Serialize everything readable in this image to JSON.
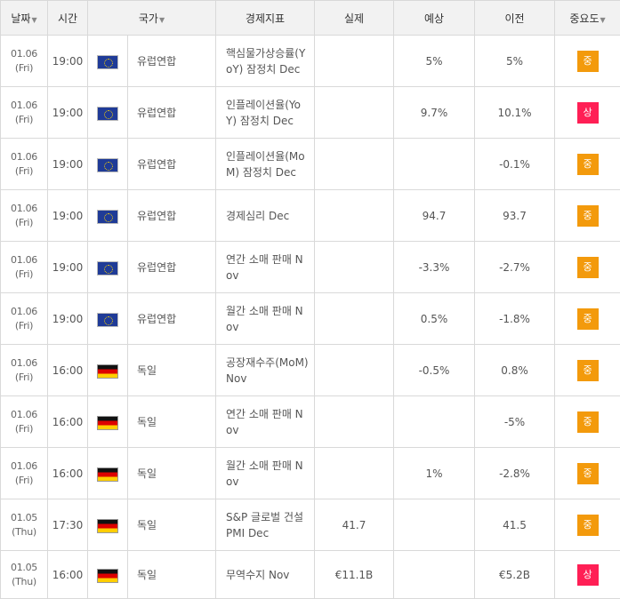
{
  "header": {
    "date": "날짜",
    "time": "시간",
    "country": "국가",
    "indicator": "경제지표",
    "actual": "실제",
    "forecast": "예상",
    "previous": "이전",
    "importance": "중요도",
    "sort_arrow": "▼"
  },
  "flags": {
    "eu": {
      "colors": [
        "#1f3b97",
        "#ffd700"
      ]
    },
    "de": {
      "colors": [
        "#111111",
        "#dd0000",
        "#ffce00"
      ]
    }
  },
  "importance_colors": {
    "mid": "#f39a0c",
    "high": "#ff1f55"
  },
  "rows": [
    {
      "date": "01.06",
      "day": "(Fri)",
      "time": "19:00",
      "flag": "eu",
      "country": "유럽연합",
      "indicator": "핵심물가상승률(YoY) 잠정치 Dec",
      "actual": "",
      "forecast": "5%",
      "previous": "5%",
      "importance": "중",
      "level": "mid"
    },
    {
      "date": "01.06",
      "day": "(Fri)",
      "time": "19:00",
      "flag": "eu",
      "country": "유럽연합",
      "indicator": "인플레이션율(YoY) 잠정치 Dec",
      "actual": "",
      "forecast": "9.7%",
      "previous": "10.1%",
      "importance": "상",
      "level": "high"
    },
    {
      "date": "01.06",
      "day": "(Fri)",
      "time": "19:00",
      "flag": "eu",
      "country": "유럽연합",
      "indicator": "인플레이션율(MoM) 잠정치 Dec",
      "actual": "",
      "forecast": "",
      "previous": "-0.1%",
      "importance": "중",
      "level": "mid"
    },
    {
      "date": "01.06",
      "day": "(Fri)",
      "time": "19:00",
      "flag": "eu",
      "country": "유럽연합",
      "indicator": "경제심리 Dec",
      "actual": "",
      "forecast": "94.7",
      "previous": "93.7",
      "importance": "중",
      "level": "mid"
    },
    {
      "date": "01.06",
      "day": "(Fri)",
      "time": "19:00",
      "flag": "eu",
      "country": "유럽연합",
      "indicator": "연간 소매 판매 Nov",
      "actual": "",
      "forecast": "-3.3%",
      "previous": "-2.7%",
      "importance": "중",
      "level": "mid"
    },
    {
      "date": "01.06",
      "day": "(Fri)",
      "time": "19:00",
      "flag": "eu",
      "country": "유럽연합",
      "indicator": "월간 소매 판매 Nov",
      "actual": "",
      "forecast": "0.5%",
      "previous": "-1.8%",
      "importance": "중",
      "level": "mid"
    },
    {
      "date": "01.06",
      "day": "(Fri)",
      "time": "16:00",
      "flag": "de",
      "country": "독일",
      "indicator": "공장재수주(MoM) Nov",
      "actual": "",
      "forecast": "-0.5%",
      "previous": "0.8%",
      "importance": "중",
      "level": "mid"
    },
    {
      "date": "01.06",
      "day": "(Fri)",
      "time": "16:00",
      "flag": "de",
      "country": "독일",
      "indicator": "연간 소매 판매 Nov",
      "actual": "",
      "forecast": "",
      "previous": "-5%",
      "importance": "중",
      "level": "mid"
    },
    {
      "date": "01.06",
      "day": "(Fri)",
      "time": "16:00",
      "flag": "de",
      "country": "독일",
      "indicator": "월간 소매 판매 Nov",
      "actual": "",
      "forecast": "1%",
      "previous": "-2.8%",
      "importance": "중",
      "level": "mid"
    },
    {
      "date": "01.05",
      "day": "(Thu)",
      "time": "17:30",
      "flag": "de",
      "country": "독일",
      "indicator": "S&P 글로벌 건설 PMI Dec",
      "actual": "41.7",
      "forecast": "",
      "previous": "41.5",
      "importance": "중",
      "level": "mid"
    },
    {
      "date": "01.05",
      "day": "(Thu)",
      "time": "16:00",
      "flag": "de",
      "country": "독일",
      "indicator": "무역수지 Nov",
      "actual": "€11.1B",
      "forecast": "",
      "previous": "€5.2B",
      "importance": "상",
      "level": "high"
    }
  ]
}
